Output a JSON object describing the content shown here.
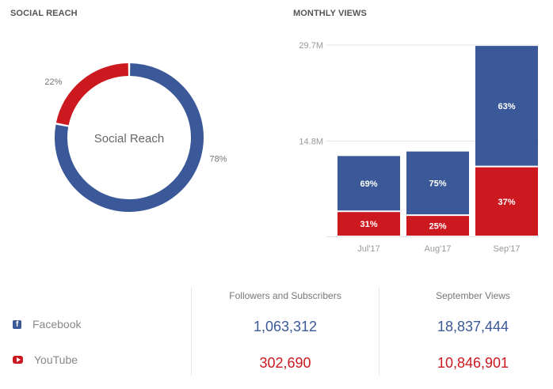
{
  "colors": {
    "facebook": "#3b5998",
    "youtube": "#cc1920",
    "text_muted": "#888888",
    "grid": "#e3e3e3"
  },
  "social_reach": {
    "title": "SOCIAL REACH",
    "center_label": "Social Reach"
  },
  "monthly_views": {
    "title": "MONTHLY VIEWS"
  },
  "chart_data": [
    {
      "type": "pie",
      "variant": "donut",
      "title": "SOCIAL REACH",
      "center_label": "Social Reach",
      "slices": [
        {
          "name": "Facebook",
          "value": 78,
          "label": "78%",
          "color": "#3b5998"
        },
        {
          "name": "YouTube",
          "value": 22,
          "label": "22%",
          "color": "#cc1920"
        }
      ]
    },
    {
      "type": "bar",
      "stacked": true,
      "title": "MONTHLY VIEWS",
      "categories": [
        "Jul'17",
        "Aug'17",
        "Sep'17"
      ],
      "series": [
        {
          "name": "YouTube",
          "color": "#cc1920",
          "values": [
            3.9,
            3.3,
            10.85
          ],
          "labels": [
            "31%",
            "25%",
            "37%"
          ]
        },
        {
          "name": "Facebook",
          "color": "#3b5998",
          "values": [
            8.7,
            10.0,
            18.84
          ],
          "labels": [
            "69%",
            "75%",
            "63%"
          ]
        }
      ],
      "yticks": [
        {
          "value": 14.8,
          "label": "14.8M"
        },
        {
          "value": 29.7,
          "label": "29.7M"
        }
      ],
      "ylim": [
        0,
        29.7
      ],
      "yunit": "M",
      "grid": true,
      "xlabel": "",
      "ylabel": ""
    }
  ],
  "table": {
    "headers": [
      "Followers and Subscribers",
      "September Views"
    ],
    "rows": [
      {
        "platform": "Facebook",
        "icon": "facebook-icon",
        "followers": "1,063,312",
        "views": "18,837,444"
      },
      {
        "platform": "YouTube",
        "icon": "youtube-icon",
        "followers": "302,690",
        "views": "10,846,901"
      }
    ]
  }
}
